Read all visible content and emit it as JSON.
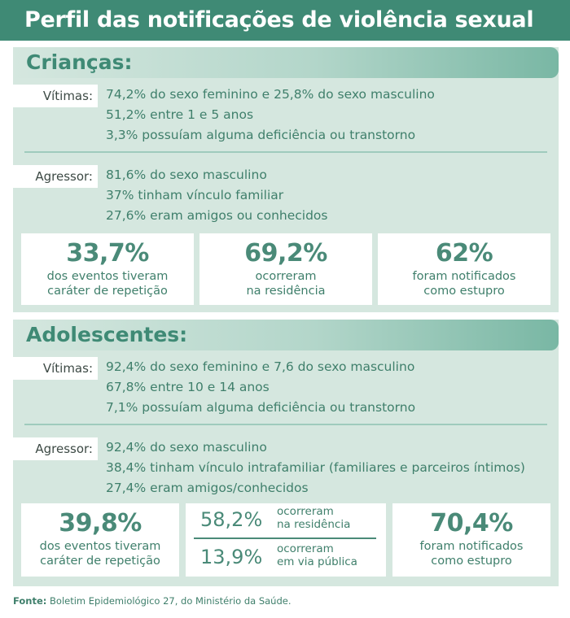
{
  "title": "Perfil das notificações de violência sexual",
  "criancas": {
    "heading": "Crianças:",
    "victims_label": "Vítimas:",
    "victims": [
      "74,2% do sexo feminino e 25,8% do sexo masculino",
      "51,2% entre 1 e 5 anos",
      "3,3% possuíam alguma deficiência ou transtorno"
    ],
    "aggressor_label": "Agressor:",
    "aggressor": [
      "81,6% do sexo masculino",
      "37% tinham vínculo familiar",
      "27,6% eram amigos ou conhecidos"
    ],
    "stats": [
      {
        "value": "33,7%",
        "line1": "dos eventos tiveram",
        "line2": "caráter de repetição"
      },
      {
        "value": "69,2%",
        "line1": "ocorreram",
        "line2": "na residência"
      },
      {
        "value": "62%",
        "line1": "foram notificados",
        "line2": "como estupro"
      }
    ]
  },
  "adolescentes": {
    "heading": "Adolescentes:",
    "victims_label": "Vítimas:",
    "victims": [
      "92,4% do sexo feminino e 7,6 do sexo masculino",
      "67,8% entre 10 e 14 anos",
      "7,1% possuíam alguma deficiência ou transtorno"
    ],
    "aggressor_label": "Agressor:",
    "aggressor": [
      "92,4% do sexo masculino",
      "38,4% tinham vínculo intrafamiliar (familiares e parceiros íntimos)",
      "27,4% eram amigos/conhecidos"
    ],
    "stat_left": {
      "value": "39,8%",
      "line1": "dos eventos tiveram",
      "line2": "caráter de repetição"
    },
    "stat_mid": [
      {
        "value": "58,2%",
        "line1": "ocorreram",
        "line2": "na residência"
      },
      {
        "value": "13,9%",
        "line1": "ocorreram",
        "line2": "em via pública"
      }
    ],
    "stat_right": {
      "value": "70,4%",
      "line1": "foram notificados",
      "line2": "como estupro"
    }
  },
  "source": {
    "label": "Fonte:",
    "text": " Boletim Epidemiológico 27, do Ministério da Saúde."
  }
}
